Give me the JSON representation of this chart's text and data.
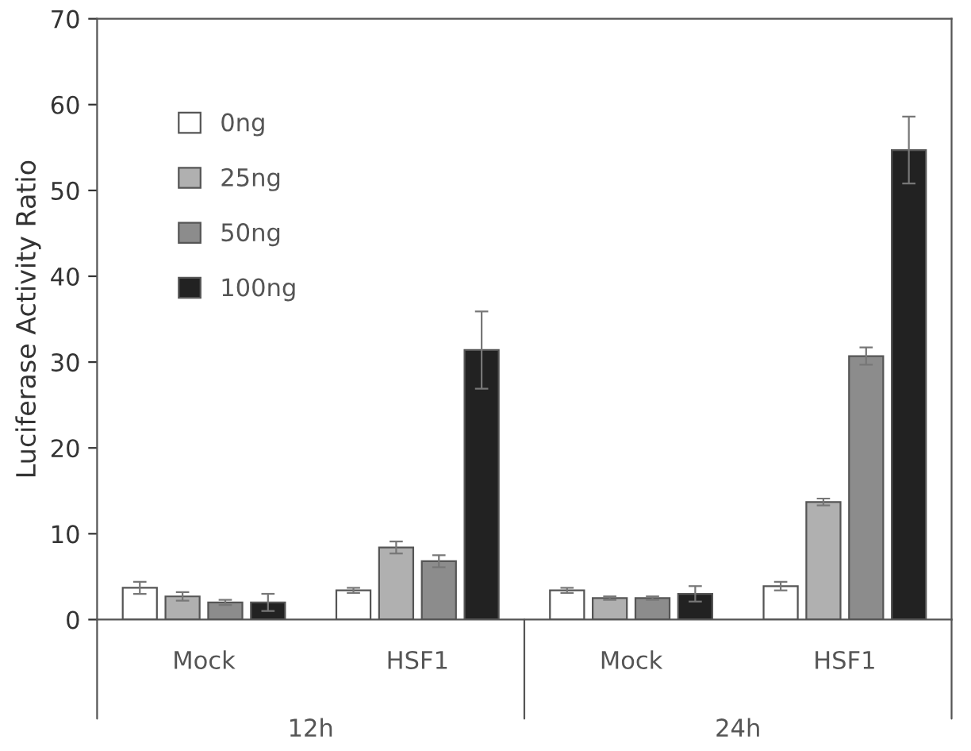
{
  "chart_data": {
    "type": "bar",
    "ylabel": "Luciferase Activity Ratio",
    "categories": [
      "Mock",
      "HSF1",
      "Mock",
      "HSF1"
    ],
    "series": [
      {
        "name": "0ng",
        "color": "#ffffff",
        "values": [
          3.7,
          3.4,
          3.4,
          3.9
        ],
        "errors": [
          0.7,
          0.3,
          0.3,
          0.5
        ]
      },
      {
        "name": "25ng",
        "color": "#b0b0b0",
        "values": [
          2.7,
          8.4,
          2.5,
          13.7
        ],
        "errors": [
          0.5,
          0.7,
          0.2,
          0.4
        ]
      },
      {
        "name": "50ng",
        "color": "#8c8c8c",
        "values": [
          2.0,
          6.8,
          2.5,
          30.7
        ],
        "errors": [
          0.3,
          0.7,
          0.2,
          1.0
        ]
      },
      {
        "name": "100ng",
        "color": "#222222",
        "values": [
          2.0,
          31.4,
          3.0,
          54.7
        ],
        "errors": [
          1.0,
          4.5,
          0.9,
          3.9
        ]
      }
    ],
    "annotations": [
      "12h",
      "24h"
    ],
    "ylim": [
      0,
      70
    ],
    "yticks": [
      0,
      10,
      20,
      30,
      40,
      50,
      60,
      70
    ],
    "grid": false,
    "legend": "top left"
  }
}
